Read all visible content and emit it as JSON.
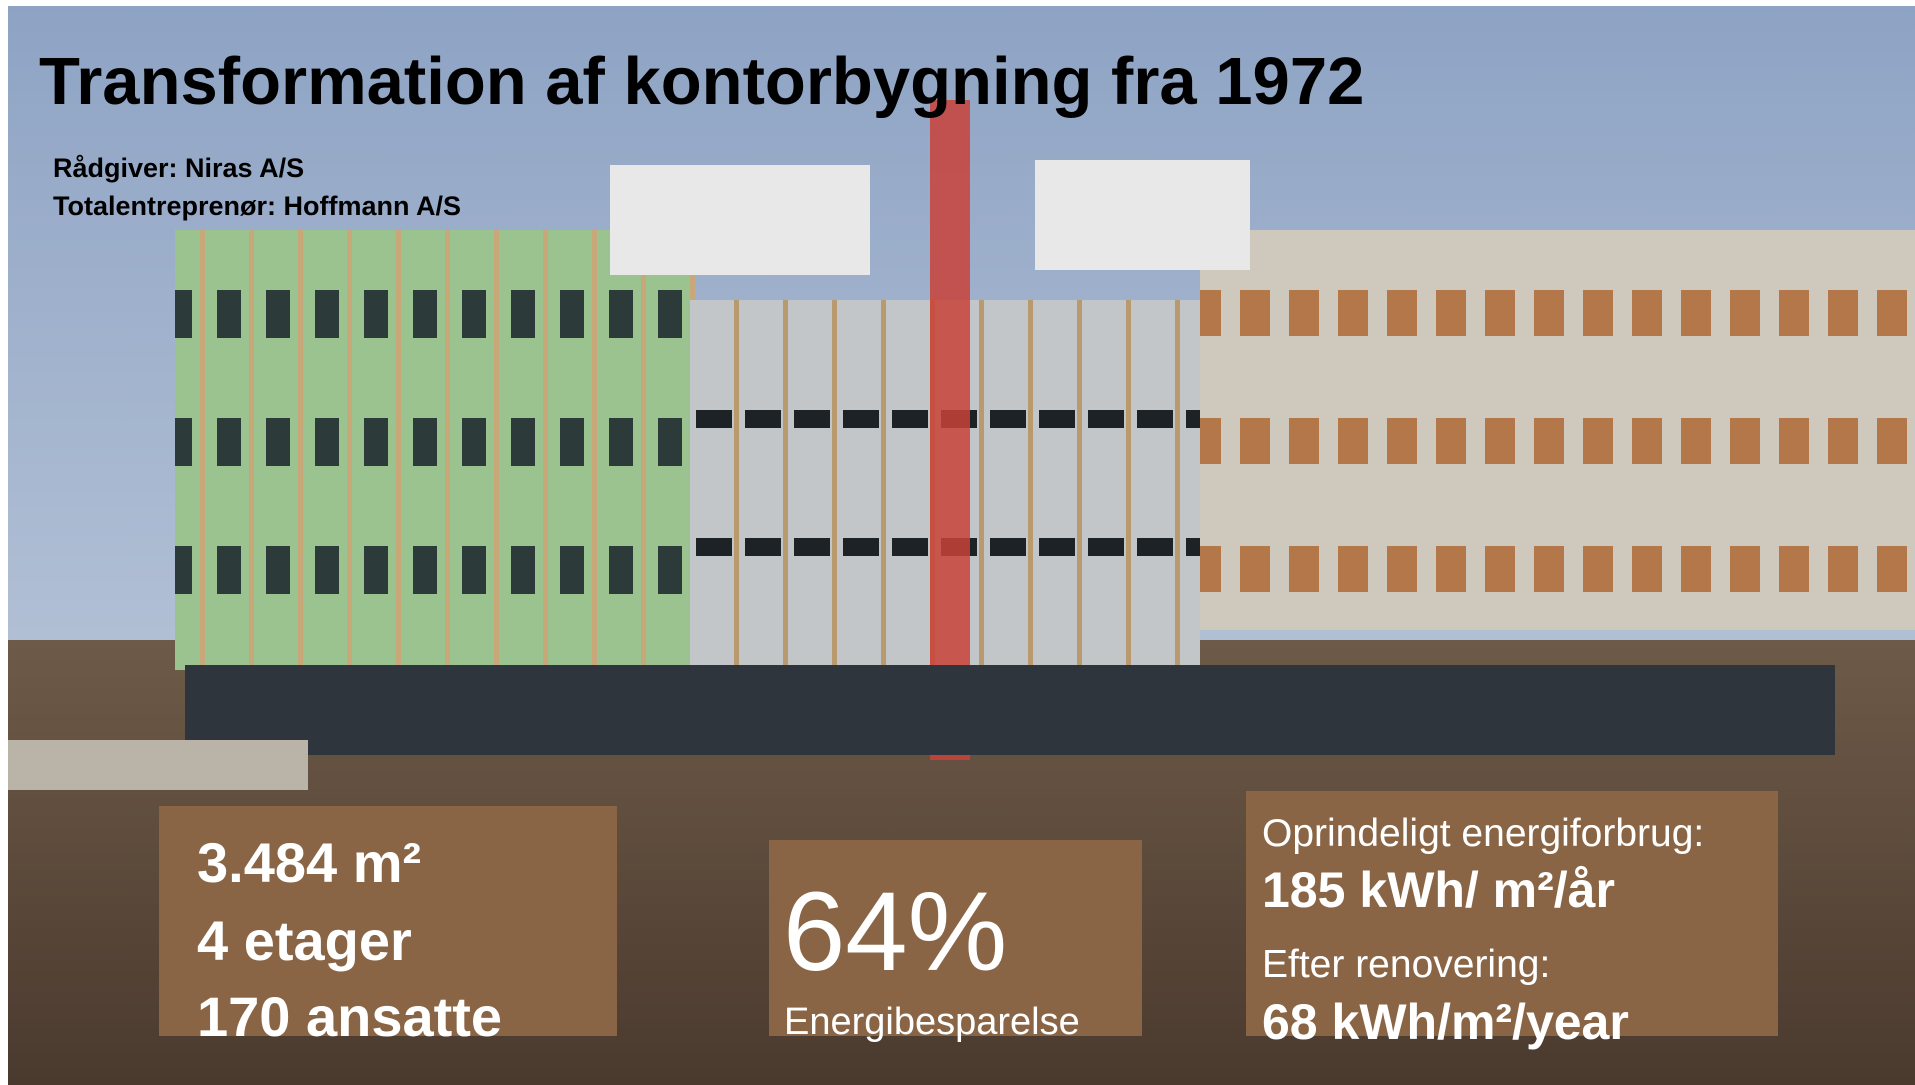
{
  "header": {
    "title": "Transformation af kontorbygning fra 1972",
    "lines": [
      "Rådgiver: Niras A/S",
      "Totalentreprenør: Hoffmann A/S"
    ]
  },
  "boxes": [
    {
      "lines": [
        "3.484 m²",
        "4 etager",
        "170 ansatte"
      ]
    },
    {
      "big": "64%",
      "caption": "Energibesparelse"
    },
    {
      "lines": [
        "Oprindeligt energiforbrug:",
        "185 kWh/ m²/år",
        "Efter renovering:",
        "68 kWh/m²/year"
      ]
    }
  ]
}
